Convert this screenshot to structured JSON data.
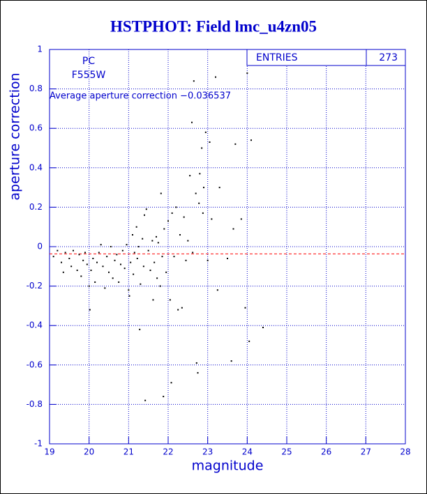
{
  "chart_data": {
    "type": "scatter",
    "title": "HSTPHOT: Field lmc_u4zn05",
    "xlabel": "magnitude",
    "ylabel": "aperture correction",
    "annotations": [
      "PC",
      "F555W",
      "Average aperture correction −0.036537"
    ],
    "reference_line": -0.036537,
    "reference_color": "#ff0000",
    "stats": {
      "label": "ENTRIES",
      "value": 273
    },
    "xlim": [
      19,
      28
    ],
    "ylim": [
      -1,
      1
    ],
    "xticks": [
      19,
      20,
      21,
      22,
      23,
      24,
      25,
      26,
      27,
      28
    ],
    "yticks": [
      -1,
      -0.8,
      -0.6,
      -0.4,
      -0.2,
      0,
      0.2,
      0.4,
      0.6,
      0.8,
      1
    ],
    "grid": true,
    "color": "#000000",
    "x": [
      19.1,
      19.2,
      19.3,
      19.35,
      19.4,
      19.5,
      19.55,
      19.6,
      19.7,
      19.75,
      19.8,
      19.85,
      19.9,
      19.95,
      20.0,
      20.02,
      20.05,
      20.1,
      20.15,
      20.2,
      20.25,
      20.3,
      20.35,
      20.4,
      20.45,
      20.5,
      20.55,
      20.6,
      20.65,
      20.7,
      20.75,
      20.8,
      20.85,
      20.9,
      20.95,
      21.0,
      21.02,
      21.05,
      21.1,
      21.12,
      21.15,
      21.2,
      21.22,
      21.25,
      21.28,
      21.3,
      21.35,
      21.38,
      21.4,
      21.42,
      21.45,
      21.5,
      21.55,
      21.6,
      21.62,
      21.65,
      21.7,
      21.72,
      21.75,
      21.8,
      21.82,
      21.85,
      21.88,
      21.9,
      21.95,
      22.0,
      22.05,
      22.08,
      22.1,
      22.15,
      22.2,
      22.25,
      22.3,
      22.35,
      22.4,
      22.45,
      22.5,
      22.55,
      22.6,
      22.62,
      22.65,
      22.7,
      22.72,
      22.75,
      22.78,
      22.8,
      22.85,
      22.88,
      22.9,
      22.95,
      23.0,
      23.05,
      23.1,
      23.2,
      23.25,
      23.3,
      23.5,
      23.6,
      23.65,
      23.7,
      23.85,
      23.95,
      24.0,
      24.05,
      24.1,
      24.4
    ],
    "values": [
      -0.05,
      -0.02,
      -0.08,
      -0.13,
      -0.03,
      -0.06,
      -0.1,
      -0.02,
      -0.12,
      -0.04,
      -0.15,
      -0.07,
      -0.03,
      -0.09,
      -0.2,
      -0.32,
      -0.12,
      -0.06,
      -0.18,
      -0.08,
      -0.03,
      0.01,
      -0.1,
      -0.21,
      -0.05,
      -0.13,
      0.0,
      -0.16,
      -0.07,
      -0.04,
      -0.18,
      -0.09,
      -0.02,
      -0.11,
      0.01,
      -0.22,
      -0.25,
      -0.08,
      0.06,
      -0.14,
      -0.03,
      0.1,
      -0.06,
      0.0,
      -0.42,
      -0.19,
      0.04,
      -0.1,
      0.16,
      -0.78,
      0.19,
      -0.02,
      -0.12,
      0.03,
      -0.27,
      -0.08,
      0.05,
      -0.16,
      0.02,
      -0.2,
      0.27,
      -0.05,
      -0.76,
      0.09,
      -0.13,
      0.13,
      -0.27,
      -0.69,
      0.17,
      -0.05,
      0.2,
      -0.32,
      0.06,
      -0.31,
      0.15,
      -0.07,
      0.03,
      0.36,
      0.63,
      -0.03,
      0.84,
      0.27,
      -0.59,
      -0.64,
      0.22,
      0.37,
      0.5,
      0.17,
      0.3,
      0.58,
      -0.07,
      0.53,
      0.14,
      0.86,
      -0.22,
      0.3,
      -0.06,
      -0.58,
      0.09,
      0.52,
      0.14,
      -0.31,
      0.88,
      -0.48,
      0.54,
      -0.41
    ]
  }
}
